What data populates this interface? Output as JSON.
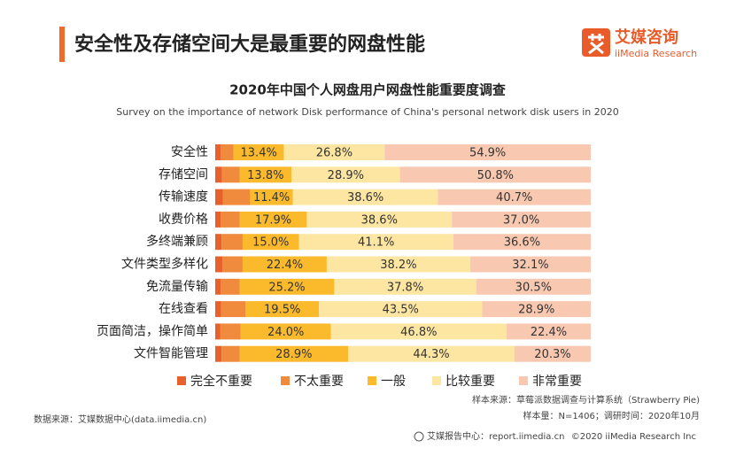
{
  "header": {
    "title": "安全性及存储空间大是最重要的网盘性能",
    "logo_name": "艾媒咨询",
    "logo_sub": "iiMedia Research"
  },
  "chart_data": {
    "type": "stacked-bar-horizontal",
    "title": "2020年中国个人网盘用户网盘性能重要度调查",
    "subtitle": "Survey on the importance of network Disk performance of China's personal network disk users in 2020",
    "categories": [
      "安全性",
      "存储空间",
      "传输速度",
      "收费价格",
      "多终端兼顾",
      "文件类型多样化",
      "免流量传输",
      "在线查看",
      "页面简洁，操作简单",
      "文件智能管理"
    ],
    "xlim": [
      0,
      100
    ],
    "series": [
      {
        "name": "完全不重要",
        "color": "#e8602c",
        "values": [
          1.5,
          1.8,
          2.0,
          1.5,
          1.7,
          1.9,
          1.5,
          1.6,
          1.3,
          1.7
        ]
      },
      {
        "name": "不太重要",
        "color": "#f08a3c",
        "values": [
          3.4,
          4.7,
          7.3,
          5.0,
          5.6,
          5.4,
          5.0,
          6.5,
          5.5,
          4.8
        ]
      },
      {
        "name": "一般",
        "color": "#fbba2c",
        "values": [
          13.4,
          13.8,
          11.4,
          17.9,
          15.0,
          22.4,
          25.2,
          19.5,
          24.0,
          28.9
        ],
        "value_labels": [
          "13.4%",
          "13.8%",
          "11.4%",
          "17.9%",
          "15.0%",
          "22.4%",
          "25.2%",
          "19.5%",
          "24.0%",
          "28.9%"
        ]
      },
      {
        "name": "比较重要",
        "color": "#fde6a2",
        "values": [
          26.8,
          28.9,
          38.6,
          38.6,
          41.1,
          38.2,
          37.8,
          43.5,
          46.8,
          44.3
        ],
        "value_labels": [
          "26.8%",
          "28.9%",
          "38.6%",
          "38.6%",
          "41.1%",
          "38.2%",
          "37.8%",
          "43.5%",
          "46.8%",
          "44.3%"
        ]
      },
      {
        "name": "非常重要",
        "color": "#f8c9b0",
        "values": [
          54.9,
          50.8,
          40.7,
          37.0,
          36.6,
          32.1,
          30.5,
          28.9,
          22.4,
          20.3
        ],
        "value_labels": [
          "54.9%",
          "50.8%",
          "40.7%",
          "37.0%",
          "36.6%",
          "32.1%",
          "30.5%",
          "28.9%",
          "22.4%",
          "20.3%"
        ]
      }
    ]
  },
  "footer": {
    "source": "数据来源：艾媒数据中心(data.iimedia.cn)",
    "sample_source": "样本来源：草莓派数据调查与计算系统（Strawberry Pie)",
    "sample_size": "样本量：N=1406；调研时间：2020年10月",
    "report_center": "艾媒报告中心：report.iimedia.cn",
    "copyright": "©2020  iiMedia Research  Inc"
  }
}
